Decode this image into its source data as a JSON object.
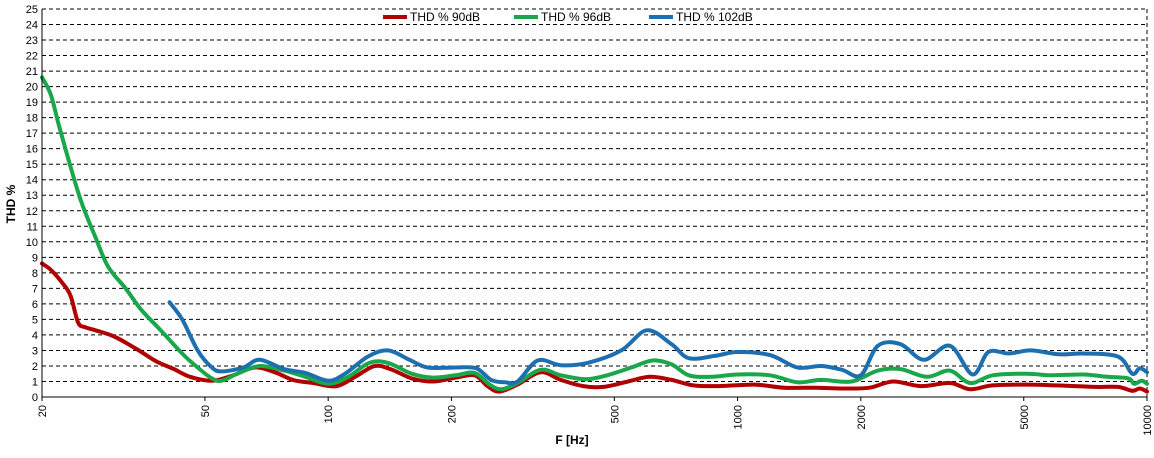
{
  "chart_data": {
    "type": "line",
    "xlabel": "F [Hz]",
    "ylabel": "THD %",
    "x_scale": "log",
    "xlim": [
      20,
      10000
    ],
    "ylim": [
      0,
      25
    ],
    "x_ticks": [
      20,
      50,
      100,
      200,
      500,
      1000,
      2000,
      5000,
      10000
    ],
    "y_ticks": [
      0,
      1,
      2,
      3,
      4,
      5,
      6,
      7,
      8,
      9,
      10,
      11,
      12,
      13,
      14,
      15,
      16,
      17,
      18,
      19,
      20,
      21,
      22,
      23,
      24,
      25
    ],
    "grid": "horizontal dashed",
    "legend_position": "top-center",
    "series": [
      {
        "name": "THD % 90dB",
        "color": "#b00000",
        "points": [
          [
            20,
            8.6
          ],
          [
            21,
            8.2
          ],
          [
            22.5,
            7.3
          ],
          [
            23.5,
            6.5
          ],
          [
            24.5,
            4.8
          ],
          [
            25.5,
            4.5
          ],
          [
            27,
            4.3
          ],
          [
            30,
            3.9
          ],
          [
            34,
            3.1
          ],
          [
            38,
            2.3
          ],
          [
            42,
            1.8
          ],
          [
            46,
            1.3
          ],
          [
            52,
            1.05
          ],
          [
            58,
            1.35
          ],
          [
            66,
            1.9
          ],
          [
            74,
            1.6
          ],
          [
            82,
            1.1
          ],
          [
            92,
            0.9
          ],
          [
            105,
            0.7
          ],
          [
            118,
            1.4
          ],
          [
            130,
            2.0
          ],
          [
            142,
            1.8
          ],
          [
            160,
            1.2
          ],
          [
            180,
            1.0
          ],
          [
            205,
            1.25
          ],
          [
            228,
            1.4
          ],
          [
            245,
            0.7
          ],
          [
            262,
            0.35
          ],
          [
            290,
            0.8
          ],
          [
            330,
            1.6
          ],
          [
            370,
            1.1
          ],
          [
            420,
            0.7
          ],
          [
            470,
            0.65
          ],
          [
            540,
            1.0
          ],
          [
            610,
            1.3
          ],
          [
            690,
            1.1
          ],
          [
            780,
            0.75
          ],
          [
            900,
            0.7
          ],
          [
            1100,
            0.8
          ],
          [
            1300,
            0.6
          ],
          [
            1550,
            0.6
          ],
          [
            1800,
            0.55
          ],
          [
            2100,
            0.6
          ],
          [
            2400,
            1.0
          ],
          [
            2800,
            0.7
          ],
          [
            3300,
            0.9
          ],
          [
            3700,
            0.5
          ],
          [
            4200,
            0.75
          ],
          [
            5100,
            0.8
          ],
          [
            6000,
            0.75
          ],
          [
            7500,
            0.65
          ],
          [
            8500,
            0.65
          ],
          [
            9200,
            0.4
          ],
          [
            9600,
            0.55
          ],
          [
            10000,
            0.35
          ]
        ]
      },
      {
        "name": "THD % 96dB",
        "color": "#1aa64a",
        "points": [
          [
            20,
            20.6
          ],
          [
            21,
            19.5
          ],
          [
            22,
            17.5
          ],
          [
            23.5,
            14.8
          ],
          [
            25,
            12.5
          ],
          [
            27,
            10.3
          ],
          [
            29,
            8.4
          ],
          [
            32,
            7.0
          ],
          [
            35,
            5.6
          ],
          [
            39,
            4.3
          ],
          [
            44,
            2.8
          ],
          [
            48,
            1.9
          ],
          [
            52,
            1.2
          ],
          [
            55,
            1.05
          ],
          [
            60,
            1.5
          ],
          [
            68,
            2.0
          ],
          [
            78,
            1.7
          ],
          [
            88,
            1.3
          ],
          [
            100,
            0.85
          ],
          [
            112,
            1.3
          ],
          [
            126,
            2.2
          ],
          [
            140,
            2.2
          ],
          [
            160,
            1.5
          ],
          [
            180,
            1.25
          ],
          [
            205,
            1.4
          ],
          [
            228,
            1.55
          ],
          [
            248,
            0.8
          ],
          [
            265,
            0.5
          ],
          [
            290,
            0.9
          ],
          [
            330,
            1.75
          ],
          [
            370,
            1.4
          ],
          [
            425,
            1.15
          ],
          [
            480,
            1.4
          ],
          [
            550,
            1.9
          ],
          [
            620,
            2.35
          ],
          [
            690,
            2.1
          ],
          [
            760,
            1.4
          ],
          [
            860,
            1.3
          ],
          [
            1000,
            1.45
          ],
          [
            1200,
            1.4
          ],
          [
            1400,
            0.95
          ],
          [
            1600,
            1.1
          ],
          [
            1900,
            1.0
          ],
          [
            2200,
            1.7
          ],
          [
            2500,
            1.8
          ],
          [
            2900,
            1.3
          ],
          [
            3300,
            1.7
          ],
          [
            3700,
            0.9
          ],
          [
            4200,
            1.4
          ],
          [
            5100,
            1.5
          ],
          [
            5800,
            1.4
          ],
          [
            7000,
            1.45
          ],
          [
            8000,
            1.3
          ],
          [
            9000,
            1.2
          ],
          [
            9300,
            0.85
          ],
          [
            9700,
            1.05
          ],
          [
            10000,
            0.85
          ]
        ]
      },
      {
        "name": "THD % 102dB",
        "color": "#1e6fb0",
        "points": [
          [
            41,
            6.1
          ],
          [
            44,
            5.0
          ],
          [
            48,
            3.0
          ],
          [
            52,
            1.9
          ],
          [
            55,
            1.65
          ],
          [
            62,
            1.9
          ],
          [
            68,
            2.4
          ],
          [
            78,
            1.8
          ],
          [
            88,
            1.55
          ],
          [
            100,
            1.05
          ],
          [
            110,
            1.5
          ],
          [
            125,
            2.6
          ],
          [
            140,
            3.0
          ],
          [
            158,
            2.4
          ],
          [
            175,
            1.9
          ],
          [
            205,
            1.9
          ],
          [
            230,
            1.85
          ],
          [
            250,
            1.1
          ],
          [
            270,
            0.95
          ],
          [
            290,
            1.0
          ],
          [
            325,
            2.35
          ],
          [
            370,
            2.05
          ],
          [
            430,
            2.2
          ],
          [
            520,
            3.0
          ],
          [
            600,
            4.3
          ],
          [
            690,
            3.4
          ],
          [
            760,
            2.5
          ],
          [
            880,
            2.65
          ],
          [
            1000,
            2.9
          ],
          [
            1200,
            2.7
          ],
          [
            1400,
            1.9
          ],
          [
            1600,
            2.0
          ],
          [
            1800,
            1.75
          ],
          [
            2000,
            1.4
          ],
          [
            2200,
            3.3
          ],
          [
            2500,
            3.4
          ],
          [
            2850,
            2.4
          ],
          [
            3300,
            3.3
          ],
          [
            3750,
            1.45
          ],
          [
            4100,
            2.9
          ],
          [
            4600,
            2.8
          ],
          [
            5200,
            3.0
          ],
          [
            6100,
            2.75
          ],
          [
            7000,
            2.8
          ],
          [
            8500,
            2.6
          ],
          [
            9200,
            1.5
          ],
          [
            9600,
            1.85
          ],
          [
            10000,
            1.6
          ]
        ]
      }
    ]
  }
}
